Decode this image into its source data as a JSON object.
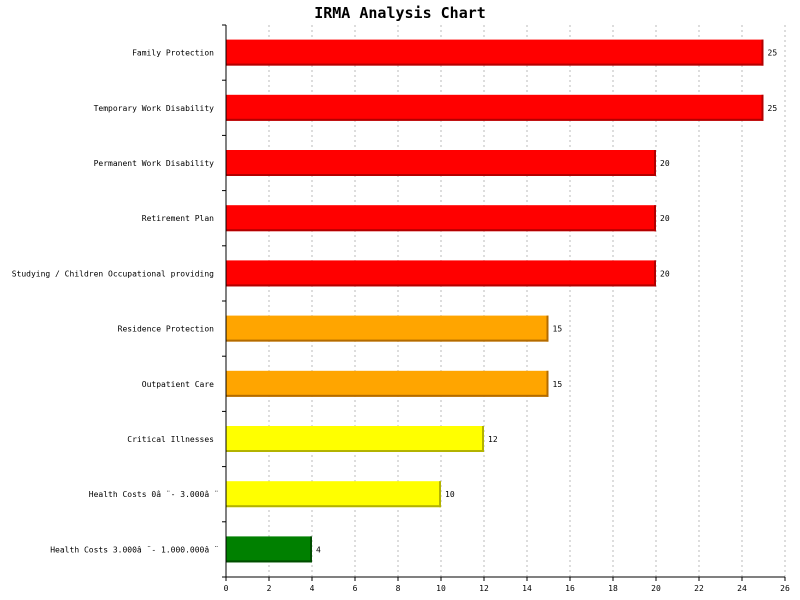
{
  "chart_data": {
    "type": "bar",
    "orientation": "horizontal",
    "title": "IRMA Analysis Chart",
    "xlabel": "",
    "ylabel": "",
    "xlim": [
      0,
      26
    ],
    "x_ticks": [
      "0",
      "2",
      "4",
      "6",
      "8",
      "10",
      "12",
      "14",
      "16",
      "18",
      "20",
      "22",
      "24",
      "26"
    ],
    "grid": true,
    "categories": [
      "Family Protection",
      "Temporary Work Disability",
      "Permanent Work Disability",
      "Retirement Plan",
      "Studying / Children Occupational providing",
      "Residence Protection",
      "Outpatient Care",
      "Critical Illnesses",
      "Health Costs 0â ̈ - 3.000â ̈",
      "Health Costs 3.000â ̈ - 1.000.000â ̈"
    ],
    "values": [
      25,
      25,
      20,
      20,
      20,
      15,
      15,
      12,
      10,
      4
    ],
    "colors": [
      "#ff0000",
      "#ff0000",
      "#ff0000",
      "#ff0000",
      "#ff0000",
      "#ffa500",
      "#ffa500",
      "#ffff00",
      "#ffff00",
      "#008000"
    ],
    "edge_colors": [
      "#b30000",
      "#b30000",
      "#b30000",
      "#b30000",
      "#b30000",
      "#b36b00",
      "#b36b00",
      "#b3b300",
      "#b3b300",
      "#004d00"
    ]
  }
}
